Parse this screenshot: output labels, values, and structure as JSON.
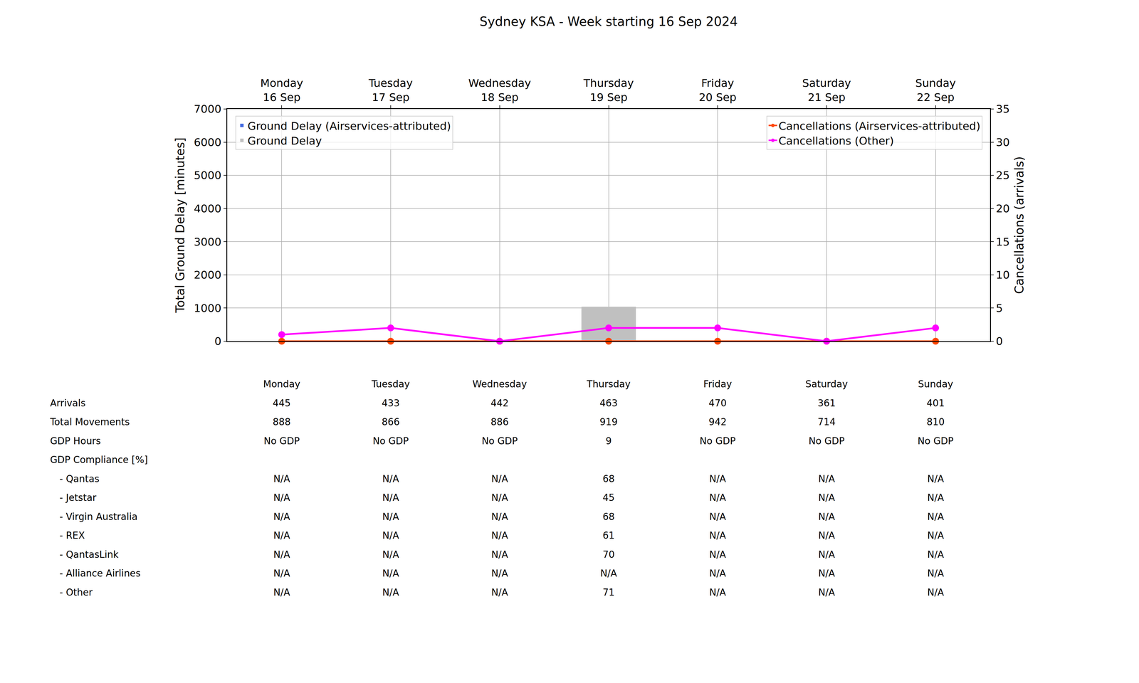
{
  "chart_data": {
    "type": "bar",
    "title": "Sydney KSA - Week starting 16 Sep 2024",
    "categories": [
      "Monday\n16 Sep",
      "Tuesday\n17 Sep",
      "Wednesday\n18 Sep",
      "Thursday\n19 Sep",
      "Friday\n20 Sep",
      "Saturday\n21 Sep",
      "Sunday\n22 Sep"
    ],
    "y_label": "Total Ground Delay [minutes]",
    "y2_label": "Cancellations (arrivals)",
    "ylim": [
      0,
      7000
    ],
    "yticks": [
      0,
      1000,
      2000,
      3000,
      4000,
      5000,
      6000,
      7000
    ],
    "y2lim": [
      0,
      35
    ],
    "y2ticks": [
      0,
      5,
      10,
      15,
      20,
      25,
      30,
      35
    ],
    "grid": true,
    "series": [
      {
        "name": "Ground Delay (Airservices-attributed)",
        "type": "bar",
        "color": "#4169e1",
        "values": [
          0,
          0,
          0,
          0,
          0,
          0,
          0
        ],
        "legend": "upper left"
      },
      {
        "name": "Ground Delay",
        "type": "bar",
        "color": "#c0c0c0",
        "values": [
          0,
          0,
          0,
          1040,
          0,
          0,
          0
        ],
        "legend": "upper left"
      },
      {
        "name": "Cancellations (Airservices-attributed)",
        "type": "line",
        "color": "#ff4500",
        "marker": "circle",
        "line_style": "solid",
        "axis": "y2",
        "values": [
          0,
          0,
          0,
          0,
          0,
          0,
          0
        ],
        "legend": "upper right"
      },
      {
        "name": "Cancellations (Other)",
        "type": "line",
        "color": "#ff00ff",
        "marker": "circle",
        "line_style": "solid",
        "axis": "y2",
        "values": [
          1,
          2,
          0,
          2,
          2,
          0,
          2
        ],
        "legend": "upper right"
      }
    ]
  },
  "table": {
    "header": [
      "Monday",
      "Tuesday",
      "Wednesday",
      "Thursday",
      "Friday",
      "Saturday",
      "Sunday"
    ],
    "rows": [
      {
        "label": "Arrivals",
        "values": [
          445,
          433,
          442,
          463,
          470,
          361,
          401
        ]
      },
      {
        "label": "Total Movements",
        "values": [
          888,
          866,
          886,
          919,
          942,
          714,
          810
        ]
      },
      {
        "label": "GDP Hours",
        "values": [
          "No GDP",
          "No GDP",
          "No GDP",
          9,
          "No GDP",
          "No GDP",
          "No GDP"
        ]
      },
      {
        "label": "GDP Compliance [%]",
        "rows": [
          {
            "label": "- Qantas",
            "values": [
              "N/A",
              "N/A",
              "N/A",
              68,
              "N/A",
              "N/A",
              "N/A"
            ]
          },
          {
            "label": "- Jetstar",
            "values": [
              "N/A",
              "N/A",
              "N/A",
              45,
              "N/A",
              "N/A",
              "N/A"
            ]
          },
          {
            "label": "- Virgin Australia",
            "values": [
              "N/A",
              "N/A",
              "N/A",
              68,
              "N/A",
              "N/A",
              "N/A"
            ]
          },
          {
            "label": "- REX",
            "values": [
              "N/A",
              "N/A",
              "N/A",
              61,
              "N/A",
              "N/A",
              "N/A"
            ]
          },
          {
            "label": "- QantasLink",
            "values": [
              "N/A",
              "N/A",
              "N/A",
              70,
              "N/A",
              "N/A",
              "N/A"
            ]
          },
          {
            "label": "- Alliance Airlines",
            "values": [
              "N/A",
              "N/A",
              "N/A",
              "N/A",
              "N/A",
              "N/A",
              "N/A"
            ]
          },
          {
            "label": "- Other",
            "values": [
              "N/A",
              "N/A",
              "N/A",
              71,
              "N/A",
              "N/A",
              "N/A"
            ]
          }
        ]
      }
    ]
  }
}
